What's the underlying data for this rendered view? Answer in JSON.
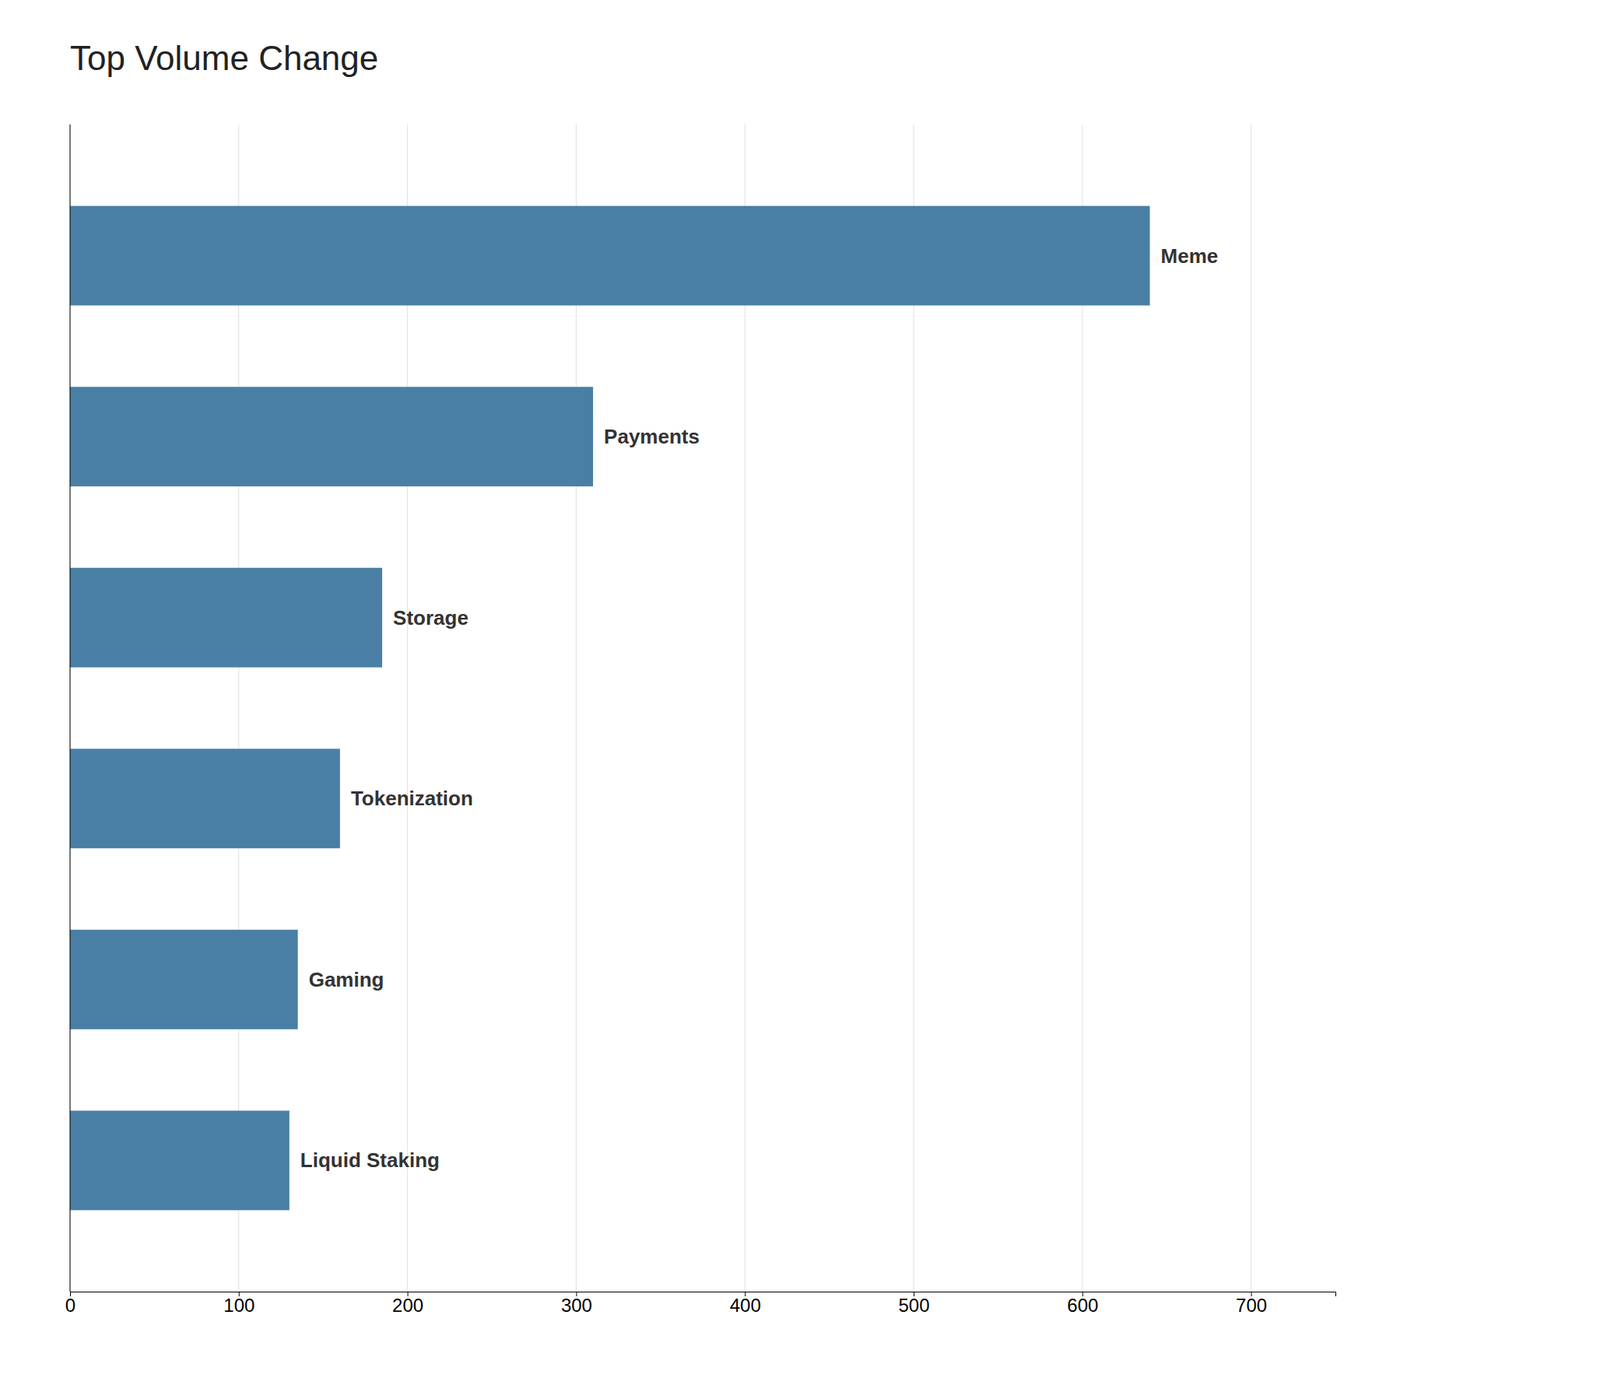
{
  "chart_data": {
    "type": "bar",
    "title": "Top Volume Change",
    "categories": [
      "Meme",
      "Payments",
      "Storage",
      "Tokenization",
      "Gaming",
      "Liquid Staking"
    ],
    "values": [
      640,
      310,
      185,
      160,
      135,
      130
    ],
    "color": "#4a7fa5",
    "orientation": "horizontal",
    "xlim": [
      0,
      750
    ],
    "xticks": [
      0,
      100,
      200,
      300,
      400,
      500,
      600,
      700
    ],
    "grid": true,
    "tick_labels": "x"
  }
}
